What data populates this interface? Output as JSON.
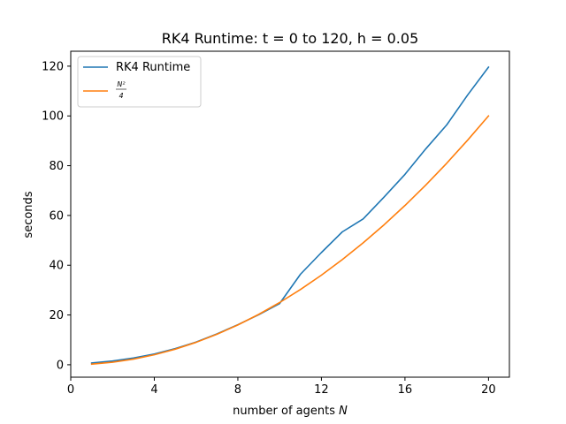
{
  "chart_data": {
    "type": "line",
    "title": "RK4 Runtime: t = 0 to 120, h = 0.05",
    "xlabel": "number of agents",
    "xlabel_var": "N",
    "ylabel": "seconds",
    "xlim": [
      0,
      21
    ],
    "ylim": [
      -5,
      126
    ],
    "xticks": [
      0,
      4,
      8,
      12,
      16,
      20
    ],
    "yticks": [
      0,
      20,
      40,
      60,
      80,
      100,
      120
    ],
    "grid": false,
    "legend_position": "top-left",
    "x": [
      1,
      2,
      3,
      4,
      5,
      6,
      7,
      8,
      9,
      10,
      11,
      12,
      13,
      14,
      15,
      16,
      17,
      18,
      19,
      20
    ],
    "series": [
      {
        "name": "RK4 Runtime",
        "color": "#1f77b4",
        "values": [
          0.7,
          1.5,
          2.7,
          4.3,
          6.5,
          9.1,
          12.4,
          16.1,
          20.1,
          24.6,
          36.4,
          45.1,
          53.4,
          58.6,
          67.4,
          76.5,
          86.8,
          96.4,
          108.4,
          119.6
        ]
      },
      {
        "name_numerator": "N²",
        "name_denominator": "4",
        "color": "#ff7f0e",
        "values": [
          0.25,
          1,
          2.25,
          4,
          6.25,
          9,
          12.25,
          16,
          20.25,
          25,
          30.25,
          36,
          42.25,
          49,
          56.25,
          64,
          72.25,
          81,
          90.25,
          100
        ]
      }
    ]
  }
}
